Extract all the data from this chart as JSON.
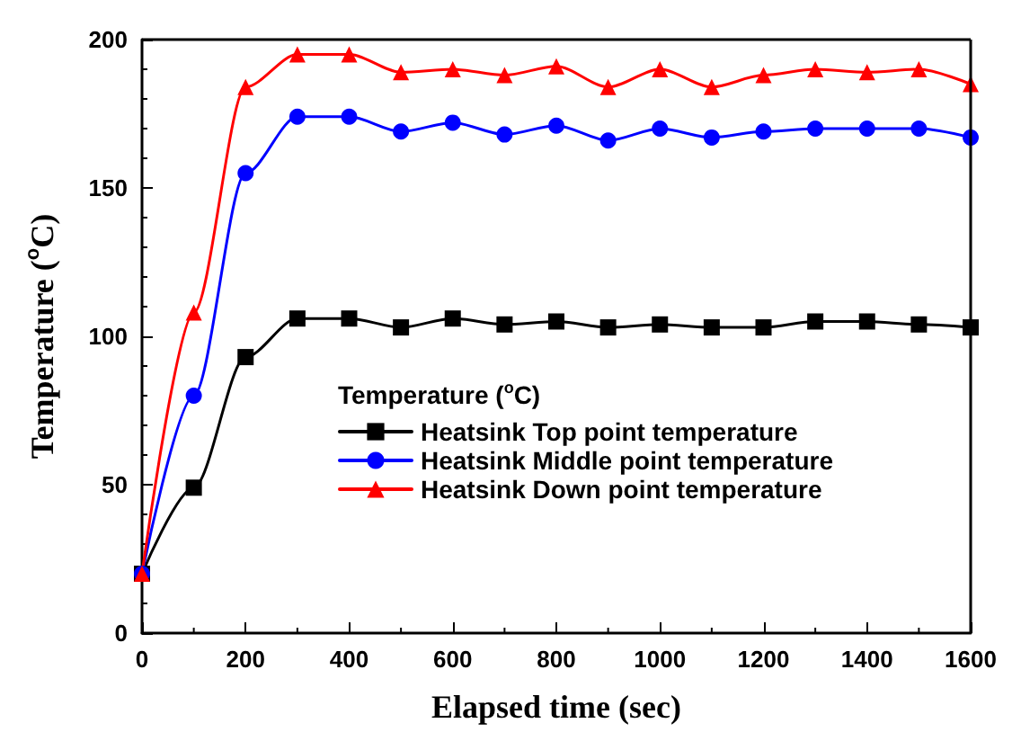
{
  "chart_data": {
    "type": "line",
    "xlabel": "Elapsed time (sec)",
    "ylabel": "Temperature ($^{o}$C)",
    "legend_title": "Temperature ($^{o}$C)",
    "x": [
      0,
      100,
      200,
      300,
      400,
      500,
      600,
      700,
      800,
      900,
      1000,
      1100,
      1200,
      1300,
      1400,
      1500,
      1600
    ],
    "xlim": [
      0,
      1600
    ],
    "xticks": [
      0,
      200,
      400,
      600,
      800,
      1000,
      1200,
      1400,
      1600
    ],
    "ylim": [
      0,
      200
    ],
    "yticks": [
      0,
      50,
      100,
      150,
      200
    ],
    "grid": false,
    "legend": "bottom right",
    "line_style": "solid",
    "series": [
      {
        "name": "Heatsink Top point temperature",
        "color": "#000000",
        "marker": "square",
        "values": [
          20,
          49,
          93,
          106,
          106,
          103,
          106,
          104,
          105,
          103,
          104,
          103,
          103,
          105,
          105,
          104,
          103
        ]
      },
      {
        "name": "Heatsink Middle point temperature",
        "color": "#0000ff",
        "marker": "circle",
        "values": [
          20,
          80,
          155,
          174,
          174,
          169,
          172,
          168,
          171,
          166,
          170,
          167,
          169,
          170,
          170,
          170,
          167
        ]
      },
      {
        "name": "Heatsink Down point temperature",
        "color": "#ff0000",
        "marker": "triangle",
        "values": [
          20,
          108,
          184,
          195,
          195,
          189,
          190,
          188,
          191,
          184,
          190,
          184,
          188,
          190,
          189,
          190,
          185
        ]
      }
    ]
  }
}
